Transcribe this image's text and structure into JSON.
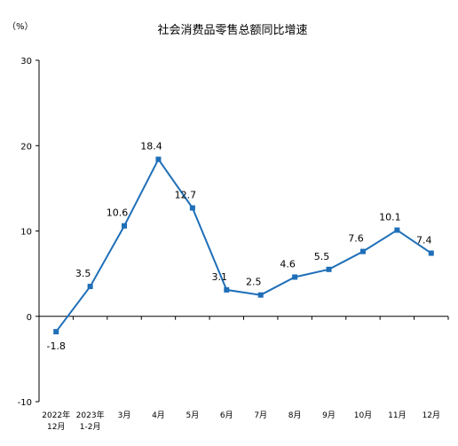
{
  "chart_data": {
    "type": "line",
    "title": "社会消费品零售总额同比增速",
    "y_unit_label": "（%）",
    "ylim": [
      -10,
      30
    ],
    "yticks": [
      "-10",
      "0",
      "10",
      "20",
      "30"
    ],
    "categories": [
      {
        "line1": "2022年",
        "line2": "12月"
      },
      {
        "line1": "2023年",
        "line2": "1-2月"
      },
      {
        "line1": "3月",
        "line2": ""
      },
      {
        "line1": "4月",
        "line2": ""
      },
      {
        "line1": "5月",
        "line2": ""
      },
      {
        "line1": "6月",
        "line2": ""
      },
      {
        "line1": "7月",
        "line2": ""
      },
      {
        "line1": "8月",
        "line2": ""
      },
      {
        "line1": "9月",
        "line2": ""
      },
      {
        "line1": "10月",
        "line2": ""
      },
      {
        "line1": "11月",
        "line2": ""
      },
      {
        "line1": "12月",
        "line2": ""
      }
    ],
    "series": [
      {
        "values": [
          -1.8,
          3.5,
          10.6,
          18.4,
          12.7,
          3.1,
          2.5,
          4.6,
          5.5,
          7.6,
          10.1,
          7.4
        ],
        "labels": [
          "-1.8",
          "3.5",
          "10.6",
          "18.4",
          "12.7",
          "3.1",
          "2.5",
          "4.6",
          "5.5",
          "7.6",
          "10.1",
          "7.4"
        ],
        "color": "#1f6fb8"
      }
    ],
    "grid": false,
    "legend": "none"
  }
}
